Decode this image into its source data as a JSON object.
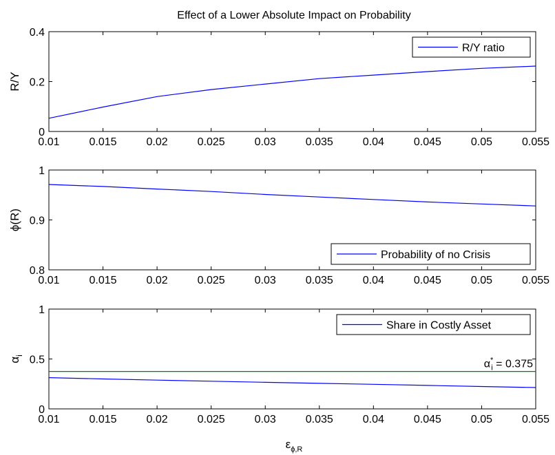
{
  "figure_title": "Effect of a Lower Absolute Impact on Probability",
  "xlabel": {
    "main": "ε",
    "sub": "ϕ,R"
  },
  "chart_data": [
    {
      "type": "line",
      "title": "Effect of a Lower Absolute Impact on Probability",
      "ylabel": {
        "main": "R/Y",
        "sub": ""
      },
      "xlim": [
        0.01,
        0.055
      ],
      "ylim": [
        0,
        0.4
      ],
      "xticks": [
        0.01,
        0.015,
        0.02,
        0.025,
        0.03,
        0.035,
        0.04,
        0.045,
        0.05,
        0.055
      ],
      "xtick_labels": [
        "0.01",
        "0.015",
        "0.02",
        "0.025",
        "0.03",
        "0.035",
        "0.04",
        "0.045",
        "0.05",
        "0.055"
      ],
      "yticks": [
        0,
        0.2,
        0.4
      ],
      "ytick_labels": [
        "0",
        "0.2",
        "0.4"
      ],
      "grid": false,
      "legend_position": "top-right",
      "series": [
        {
          "name": "R/Y ratio",
          "color": "#0000ff",
          "x": [
            0.01,
            0.015,
            0.02,
            0.025,
            0.03,
            0.035,
            0.04,
            0.045,
            0.05,
            0.055
          ],
          "y": [
            0.053,
            0.098,
            0.14,
            0.168,
            0.19,
            0.212,
            0.226,
            0.24,
            0.253,
            0.262
          ]
        }
      ]
    },
    {
      "type": "line",
      "ylabel": {
        "main": "ϕ(R)",
        "sub": ""
      },
      "xlim": [
        0.01,
        0.055
      ],
      "ylim": [
        0.8,
        1
      ],
      "xticks": [
        0.01,
        0.015,
        0.02,
        0.025,
        0.03,
        0.035,
        0.04,
        0.045,
        0.05,
        0.055
      ],
      "xtick_labels": [
        "0.01",
        "0.015",
        "0.02",
        "0.025",
        "0.03",
        "0.035",
        "0.04",
        "0.045",
        "0.05",
        "0.055"
      ],
      "yticks": [
        0.8,
        0.9,
        1
      ],
      "ytick_labels": [
        "0.8",
        "0.9",
        "1"
      ],
      "grid": false,
      "legend_position": "bottom-right",
      "series": [
        {
          "name": "Probability of no Crisis",
          "color": "#0000ff",
          "x": [
            0.01,
            0.015,
            0.02,
            0.025,
            0.03,
            0.035,
            0.04,
            0.045,
            0.05,
            0.055
          ],
          "y": [
            0.971,
            0.967,
            0.962,
            0.957,
            0.951,
            0.946,
            0.941,
            0.936,
            0.932,
            0.928
          ]
        }
      ]
    },
    {
      "type": "line",
      "ylabel": {
        "main": "α",
        "sub": "i"
      },
      "xlim": [
        0.01,
        0.055
      ],
      "ylim": [
        0,
        1
      ],
      "xticks": [
        0.01,
        0.015,
        0.02,
        0.025,
        0.03,
        0.035,
        0.04,
        0.045,
        0.05,
        0.055
      ],
      "xtick_labels": [
        "0.01",
        "0.015",
        "0.02",
        "0.025",
        "0.03",
        "0.035",
        "0.04",
        "0.045",
        "0.05",
        "0.055"
      ],
      "yticks": [
        0,
        0.5,
        1
      ],
      "ytick_labels": [
        "0",
        "0.5",
        "1"
      ],
      "grid": false,
      "legend_position": "top-right",
      "series": [
        {
          "name": "Share in Costly Asset",
          "color": "#0000ff",
          "x": [
            0.01,
            0.015,
            0.02,
            0.025,
            0.03,
            0.035,
            0.04,
            0.045,
            0.05,
            0.055
          ],
          "y": [
            0.313,
            0.3,
            0.288,
            0.277,
            0.266,
            0.256,
            0.246,
            0.235,
            0.224,
            0.214
          ]
        }
      ],
      "reference_line": {
        "y": 0.375,
        "color": "#008000",
        "label": {
          "main": "α",
          "sup": "*",
          "sub": "i",
          "rest": " = 0.375"
        }
      }
    }
  ]
}
